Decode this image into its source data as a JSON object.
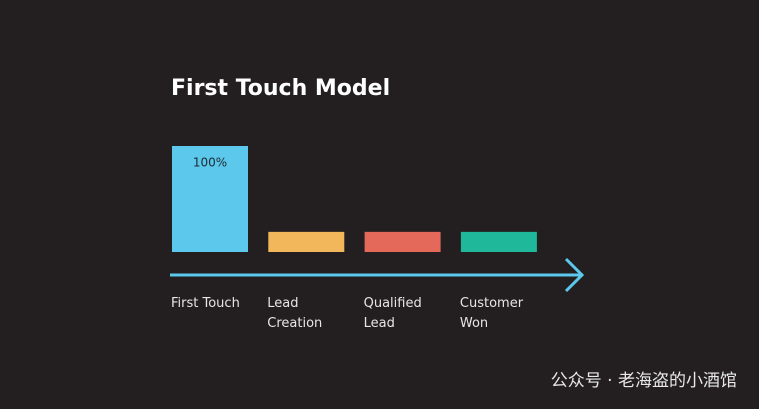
{
  "chart_data": {
    "type": "bar",
    "title": "First Touch Model",
    "categories": [
      "First Touch",
      "Lead Creation",
      "Qualified Lead",
      "Customer Won"
    ],
    "values": [
      100,
      19,
      19,
      19
    ],
    "value_labels": [
      "100%",
      null,
      null,
      null
    ],
    "colors": [
      "#5bc8ec",
      "#f1b75a",
      "#e4695a",
      "#20b89a"
    ],
    "axis_color": "#5bc8ec",
    "ylim": [
      0,
      100
    ]
  },
  "watermark": "公众号 · 老海盗的小酒馆"
}
